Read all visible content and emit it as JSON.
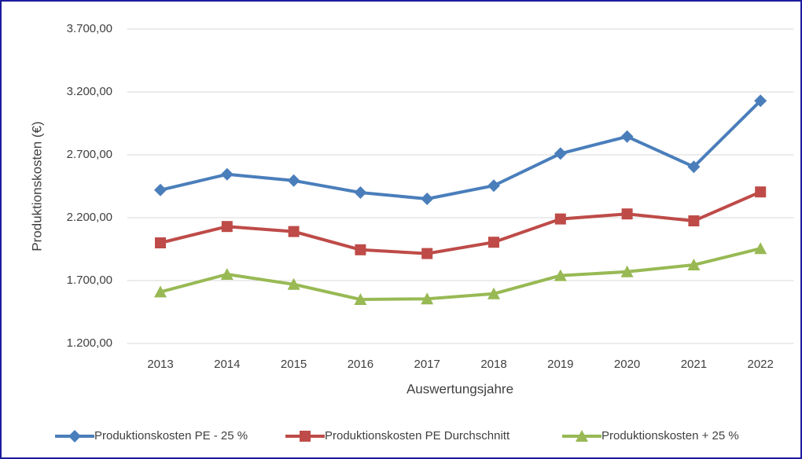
{
  "chart_data": {
    "type": "line",
    "y_label": "Produktionskosten (€)",
    "x_label": "Auswertungsjahre",
    "categories": [
      "2013",
      "2014",
      "2015",
      "2016",
      "2017",
      "2018",
      "2019",
      "2020",
      "2021",
      "2022"
    ],
    "series": [
      {
        "name": "Produktionskosten PE - 25 %",
        "color": "#4a7ebb",
        "marker": "diamond",
        "values": [
          2420,
          2545,
          2495,
          2400,
          2350,
          2455,
          2710,
          2845,
          2605,
          3130
        ]
      },
      {
        "name": "Produktionskosten PE Durchschnitt",
        "color": "#be4b48",
        "marker": "square",
        "values": [
          2000,
          2130,
          2090,
          1945,
          1915,
          2005,
          2190,
          2230,
          2175,
          2405
        ]
      },
      {
        "name": "Produktionskosten + 25 %",
        "color": "#98b954",
        "marker": "triangle",
        "values": [
          1610,
          1750,
          1670,
          1550,
          1555,
          1595,
          1740,
          1770,
          1825,
          1955
        ]
      }
    ],
    "ylim": [
      1200,
      3700
    ],
    "yticks": [
      {
        "value": 1200,
        "label": "1.200,00"
      },
      {
        "value": 1700,
        "label": "1.700,00"
      },
      {
        "value": 2200,
        "label": "2.200,00"
      },
      {
        "value": 2700,
        "label": "2.700,00"
      },
      {
        "value": 3200,
        "label": "3.200,00"
      },
      {
        "value": 3700,
        "label": "3.700,00"
      }
    ],
    "grid": true,
    "legend": "bottom"
  }
}
